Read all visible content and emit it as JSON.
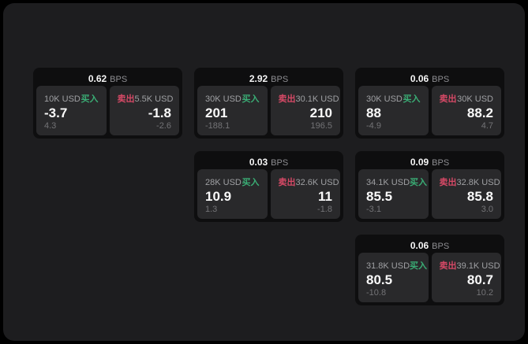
{
  "labels": {
    "bps": "BPS",
    "buy": "买入",
    "sell": "卖出"
  },
  "colors": {
    "page_bg": "#000000",
    "panel_bg": "#1d1d1f",
    "card_bg": "#0e0e0f",
    "tile_bg": "#29292b",
    "buy_green": "#3aad75",
    "sell_red": "#d64966",
    "value_white": "#fafafa",
    "amount_gray": "#9fa0a3",
    "sub_gray": "#737376",
    "bps_gray": "#8e8e92"
  },
  "cards": [
    {
      "bps": "0.62",
      "buy": {
        "amount": "10K USD",
        "value": "-3.7",
        "sub": "4.3"
      },
      "sell": {
        "amount": "5.5K USD",
        "value": "-1.8",
        "sub": "-2.6"
      }
    },
    {
      "bps": "2.92",
      "buy": {
        "amount": "30K USD",
        "value": "201",
        "sub": "-188.1"
      },
      "sell": {
        "amount": "30.1K USD",
        "value": "210",
        "sub": "196.5"
      }
    },
    {
      "bps": "0.06",
      "buy": {
        "amount": "30K USD",
        "value": "88",
        "sub": "-4.9"
      },
      "sell": {
        "amount": "30K USD",
        "value": "88.2",
        "sub": "4.7"
      }
    },
    {
      "bps": "0.03",
      "buy": {
        "amount": "28K USD",
        "value": "10.9",
        "sub": "1.3"
      },
      "sell": {
        "amount": "32.6K USD",
        "value": "11",
        "sub": "-1.8"
      }
    },
    {
      "bps": "0.09",
      "buy": {
        "amount": "34.1K USD",
        "value": "85.5",
        "sub": "-3.1"
      },
      "sell": {
        "amount": "32.8K USD",
        "value": "85.8",
        "sub": "3.0"
      }
    },
    {
      "bps": "0.06",
      "buy": {
        "amount": "31.8K USD",
        "value": "80.5",
        "sub": "-10.8"
      },
      "sell": {
        "amount": "39.1K USD",
        "value": "80.7",
        "sub": "10.2"
      }
    }
  ]
}
